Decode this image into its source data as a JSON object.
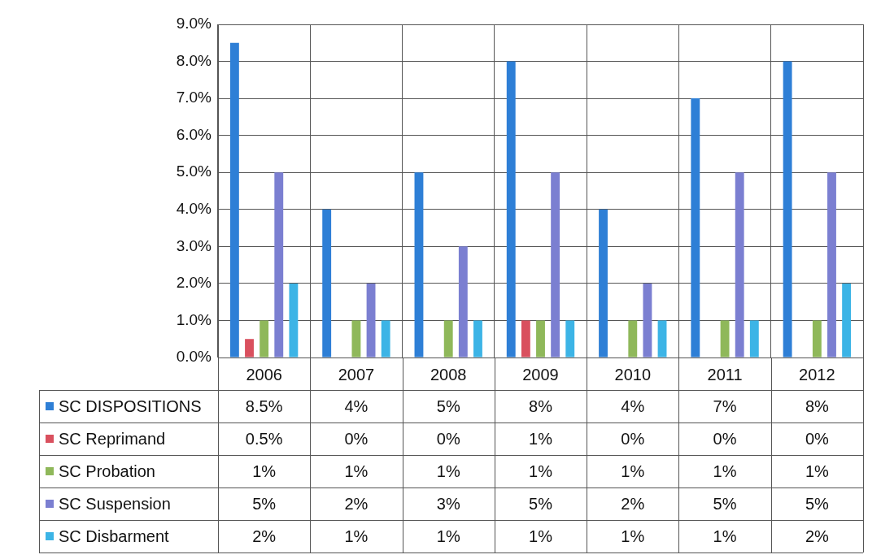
{
  "chart_data": {
    "type": "bar",
    "categories": [
      "2006",
      "2007",
      "2008",
      "2009",
      "2010",
      "2011",
      "2012"
    ],
    "series": [
      {
        "name": "SC DISPOSITIONS",
        "color": "#2e7fd6",
        "values": [
          8.5,
          4,
          5,
          8,
          4,
          7,
          8
        ],
        "value_labels": [
          "8.5%",
          "4%",
          "5%",
          "8%",
          "4%",
          "7%",
          "8%"
        ]
      },
      {
        "name": "SC Reprimand",
        "color": "#d9505e",
        "values": [
          0.5,
          0,
          0,
          1,
          0,
          0,
          0
        ],
        "value_labels": [
          "0.5%",
          "0%",
          "0%",
          "1%",
          "0%",
          "0%",
          "0%"
        ]
      },
      {
        "name": "SC Probation",
        "color": "#8fb85a",
        "values": [
          1,
          1,
          1,
          1,
          1,
          1,
          1
        ],
        "value_labels": [
          "1%",
          "1%",
          "1%",
          "1%",
          "1%",
          "1%",
          "1%"
        ]
      },
      {
        "name": "SC Suspension",
        "color": "#7b7fd1",
        "values": [
          5,
          2,
          3,
          5,
          2,
          5,
          5
        ],
        "value_labels": [
          "5%",
          "2%",
          "3%",
          "5%",
          "2%",
          "5%",
          "5%"
        ]
      },
      {
        "name": "SC Disbarment",
        "color": "#3cb4e6",
        "values": [
          2,
          1,
          1,
          1,
          1,
          1,
          2
        ],
        "value_labels": [
          "2%",
          "1%",
          "1%",
          "1%",
          "1%",
          "1%",
          "2%"
        ]
      }
    ],
    "ylim": [
      0,
      9
    ],
    "yticks": [
      {
        "value": 0,
        "label": "0.0%"
      },
      {
        "value": 1,
        "label": "1.0%"
      },
      {
        "value": 2,
        "label": "2.0%"
      },
      {
        "value": 3,
        "label": "3.0%"
      },
      {
        "value": 4,
        "label": "4.0%"
      },
      {
        "value": 5,
        "label": "5.0%"
      },
      {
        "value": 6,
        "label": "6.0%"
      },
      {
        "value": 7,
        "label": "7.0%"
      },
      {
        "value": 8,
        "label": "8.0%"
      },
      {
        "value": 9,
        "label": "9.0%"
      }
    ],
    "grid": true,
    "legend": "bottom"
  }
}
